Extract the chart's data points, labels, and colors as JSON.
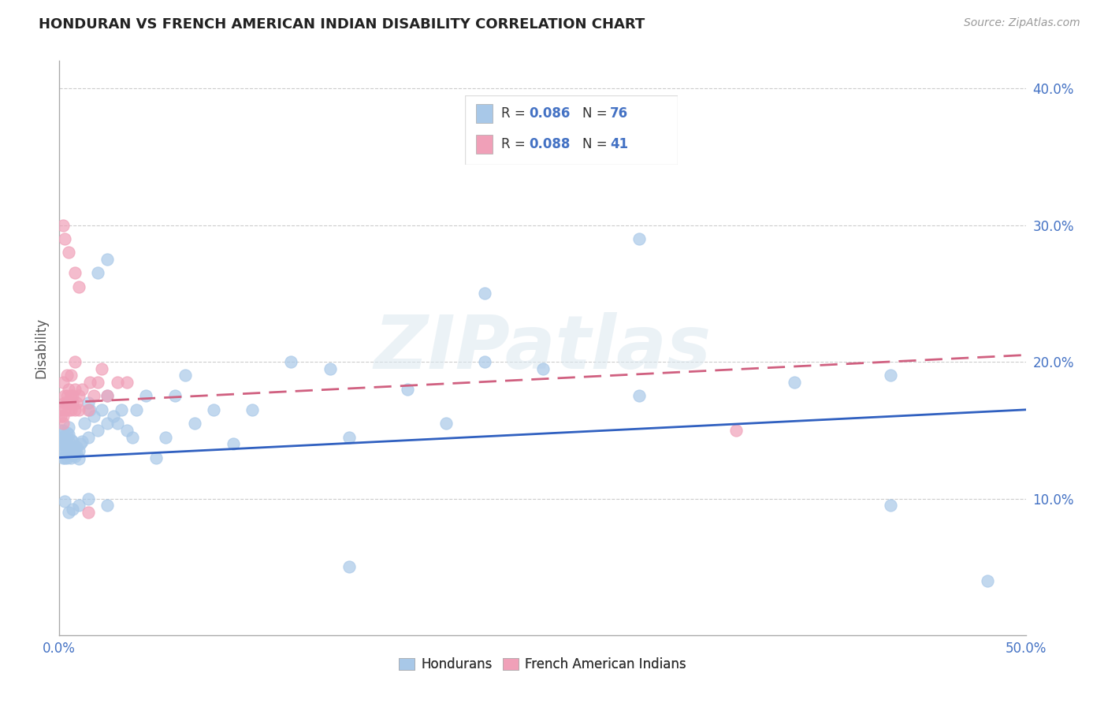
{
  "title": "HONDURAN VS FRENCH AMERICAN INDIAN DISABILITY CORRELATION CHART",
  "source": "Source: ZipAtlas.com",
  "ylabel": "Disability",
  "xmin": 0.0,
  "xmax": 0.5,
  "ymin": 0.0,
  "ymax": 0.42,
  "yticks": [
    0.1,
    0.2,
    0.3,
    0.4
  ],
  "legend_r1": "0.086",
  "legend_n1": "76",
  "legend_r2": "0.088",
  "legend_n2": "41",
  "color_blue": "#A8C8E8",
  "color_pink": "#F0A0B8",
  "color_blue_line": "#3060C0",
  "color_pink_line": "#D06080",
  "color_blue_text": "#4472C4",
  "watermark_text": "ZIPatlas",
  "trend_blue_x0": 0.0,
  "trend_blue_y0": 0.13,
  "trend_blue_x1": 0.5,
  "trend_blue_y1": 0.165,
  "trend_pink_x0": 0.0,
  "trend_pink_y0": 0.17,
  "trend_pink_x1": 0.5,
  "trend_pink_y1": 0.205,
  "hond_x": [
    0.001,
    0.001,
    0.001,
    0.002,
    0.002,
    0.002,
    0.002,
    0.002,
    0.003,
    0.003,
    0.003,
    0.003,
    0.004,
    0.004,
    0.004,
    0.004,
    0.005,
    0.005,
    0.005,
    0.005,
    0.005,
    0.006,
    0.006,
    0.006,
    0.006,
    0.007,
    0.007,
    0.007,
    0.008,
    0.008,
    0.009,
    0.009,
    0.01,
    0.01,
    0.011,
    0.012,
    0.013,
    0.015,
    0.015,
    0.016,
    0.018,
    0.02,
    0.022,
    0.025,
    0.025,
    0.028,
    0.03,
    0.032,
    0.035,
    0.038,
    0.04,
    0.045,
    0.05,
    0.055,
    0.06,
    0.065,
    0.07,
    0.08,
    0.09,
    0.1,
    0.12,
    0.14,
    0.15,
    0.18,
    0.2,
    0.22,
    0.25,
    0.3,
    0.38,
    0.43,
    0.003,
    0.005,
    0.007,
    0.01,
    0.015,
    0.025
  ],
  "hond_y": [
    0.14,
    0.145,
    0.15,
    0.13,
    0.135,
    0.14,
    0.145,
    0.15,
    0.13,
    0.135,
    0.14,
    0.145,
    0.13,
    0.135,
    0.14,
    0.148,
    0.132,
    0.137,
    0.142,
    0.147,
    0.152,
    0.13,
    0.135,
    0.138,
    0.143,
    0.132,
    0.137,
    0.142,
    0.131,
    0.136,
    0.133,
    0.138,
    0.129,
    0.135,
    0.14,
    0.142,
    0.155,
    0.145,
    0.17,
    0.165,
    0.16,
    0.15,
    0.165,
    0.155,
    0.175,
    0.16,
    0.155,
    0.165,
    0.15,
    0.145,
    0.165,
    0.175,
    0.13,
    0.145,
    0.175,
    0.19,
    0.155,
    0.165,
    0.14,
    0.165,
    0.2,
    0.195,
    0.145,
    0.18,
    0.155,
    0.2,
    0.195,
    0.175,
    0.185,
    0.19,
    0.098,
    0.09,
    0.092,
    0.095,
    0.1,
    0.095
  ],
  "french_x": [
    0.001,
    0.001,
    0.002,
    0.002,
    0.003,
    0.003,
    0.003,
    0.004,
    0.004,
    0.005,
    0.005,
    0.005,
    0.006,
    0.006,
    0.007,
    0.007,
    0.008,
    0.008,
    0.009,
    0.01,
    0.01,
    0.012,
    0.015,
    0.016,
    0.018,
    0.02,
    0.022,
    0.025,
    0.03,
    0.035,
    0.002,
    0.004,
    0.006,
    0.008,
    0.35,
    0.002,
    0.003,
    0.005,
    0.008,
    0.01,
    0.015
  ],
  "french_y": [
    0.16,
    0.165,
    0.155,
    0.16,
    0.17,
    0.175,
    0.165,
    0.17,
    0.175,
    0.165,
    0.17,
    0.18,
    0.165,
    0.175,
    0.17,
    0.175,
    0.165,
    0.18,
    0.17,
    0.165,
    0.175,
    0.18,
    0.165,
    0.185,
    0.175,
    0.185,
    0.195,
    0.175,
    0.185,
    0.185,
    0.185,
    0.19,
    0.19,
    0.2,
    0.15,
    0.3,
    0.29,
    0.28,
    0.265,
    0.255,
    0.09
  ],
  "hond_special_x": [
    0.025,
    0.02,
    0.15,
    0.22,
    0.3,
    0.43,
    0.48
  ],
  "hond_special_y": [
    0.275,
    0.265,
    0.05,
    0.25,
    0.29,
    0.095,
    0.04
  ]
}
